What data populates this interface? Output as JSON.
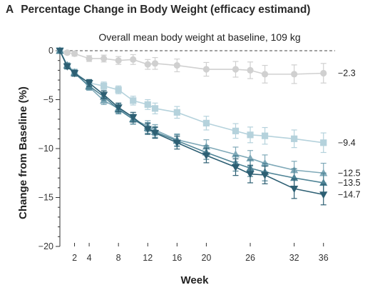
{
  "panel": {
    "letter": "A",
    "title": "Percentage Change in Body Weight (efficacy estimand)"
  },
  "chart_data": {
    "type": "line",
    "title": "Percentage Change in Body Weight (efficacy estimand)",
    "subtitle": "Overall mean body weight at baseline, 109 kg",
    "xlabel": "Week",
    "ylabel": "Change from Baseline (%)",
    "xlim": [
      0,
      37
    ],
    "ylim": [
      -20,
      0
    ],
    "xticks": [
      2,
      4,
      8,
      12,
      16,
      20,
      26,
      32,
      36
    ],
    "yticks": [
      0,
      -5,
      -10,
      -15,
      -20
    ],
    "reference_line": 0,
    "grid": false,
    "legend": "none",
    "series": [
      {
        "marker": "circle",
        "color": "#d0d0d0",
        "end_label": "-2.3",
        "points": [
          {
            "x": 0,
            "y": 0,
            "err": 0
          },
          {
            "x": 1,
            "y": -0.2,
            "err": 0.2
          },
          {
            "x": 2,
            "y": -0.3,
            "err": 0.25
          },
          {
            "x": 4,
            "y": -0.8,
            "err": 0.3
          },
          {
            "x": 6,
            "y": -0.8,
            "err": 0.35
          },
          {
            "x": 8,
            "y": -1.0,
            "err": 0.4
          },
          {
            "x": 10,
            "y": -0.9,
            "err": 0.5
          },
          {
            "x": 12,
            "y": -1.4,
            "err": 0.5
          },
          {
            "x": 13,
            "y": -1.3,
            "err": 0.6
          },
          {
            "x": 16,
            "y": -1.5,
            "err": 0.65
          },
          {
            "x": 20,
            "y": -1.9,
            "err": 0.7
          },
          {
            "x": 24,
            "y": -1.9,
            "err": 0.8
          },
          {
            "x": 26,
            "y": -2.0,
            "err": 0.85
          },
          {
            "x": 28,
            "y": -2.4,
            "err": 0.9
          },
          {
            "x": 32,
            "y": -2.4,
            "err": 0.95
          },
          {
            "x": 36,
            "y": -2.3,
            "err": 1.0
          }
        ]
      },
      {
        "marker": "square",
        "color": "#b5d2dc",
        "end_label": "-9.4",
        "points": [
          {
            "x": 0,
            "y": 0,
            "err": 0
          },
          {
            "x": 1,
            "y": -1.6,
            "err": 0.25
          },
          {
            "x": 2,
            "y": -2.2,
            "err": 0.3
          },
          {
            "x": 4,
            "y": -3.3,
            "err": 0.35
          },
          {
            "x": 6,
            "y": -3.6,
            "err": 0.4
          },
          {
            "x": 8,
            "y": -4.0,
            "err": 0.4
          },
          {
            "x": 10,
            "y": -5.1,
            "err": 0.45
          },
          {
            "x": 12,
            "y": -5.5,
            "err": 0.5
          },
          {
            "x": 13,
            "y": -5.9,
            "err": 0.55
          },
          {
            "x": 16,
            "y": -6.3,
            "err": 0.6
          },
          {
            "x": 20,
            "y": -7.4,
            "err": 0.7
          },
          {
            "x": 24,
            "y": -8.2,
            "err": 0.75
          },
          {
            "x": 26,
            "y": -8.6,
            "err": 0.8
          },
          {
            "x": 28,
            "y": -8.7,
            "err": 0.85
          },
          {
            "x": 32,
            "y": -9.0,
            "err": 0.9
          },
          {
            "x": 36,
            "y": -9.4,
            "err": 1.0
          }
        ]
      },
      {
        "marker": "triangle-up",
        "color": "#7fa9b8",
        "end_label": "-12.5",
        "points": [
          {
            "x": 0,
            "y": 0,
            "err": 0
          },
          {
            "x": 1,
            "y": -1.5,
            "err": 0.25
          },
          {
            "x": 2,
            "y": -2.2,
            "err": 0.3
          },
          {
            "x": 4,
            "y": -3.7,
            "err": 0.35
          },
          {
            "x": 6,
            "y": -5.1,
            "err": 0.4
          },
          {
            "x": 8,
            "y": -5.9,
            "err": 0.45
          },
          {
            "x": 10,
            "y": -7.0,
            "err": 0.5
          },
          {
            "x": 12,
            "y": -7.7,
            "err": 0.55
          },
          {
            "x": 13,
            "y": -8.1,
            "err": 0.55
          },
          {
            "x": 16,
            "y": -9.1,
            "err": 0.6
          },
          {
            "x": 20,
            "y": -9.8,
            "err": 0.7
          },
          {
            "x": 24,
            "y": -10.6,
            "err": 0.75
          },
          {
            "x": 26,
            "y": -11.0,
            "err": 0.8
          },
          {
            "x": 28,
            "y": -11.5,
            "err": 0.85
          },
          {
            "x": 32,
            "y": -12.2,
            "err": 0.9
          },
          {
            "x": 36,
            "y": -12.5,
            "err": 1.0
          }
        ]
      },
      {
        "marker": "triangle-up",
        "color": "#4f8496",
        "end_label": "-13.5",
        "points": [
          {
            "x": 0,
            "y": 0,
            "err": 0
          },
          {
            "x": 1,
            "y": -1.5,
            "err": 0.25
          },
          {
            "x": 2,
            "y": -2.3,
            "err": 0.3
          },
          {
            "x": 4,
            "y": -3.6,
            "err": 0.35
          },
          {
            "x": 6,
            "y": -4.7,
            "err": 0.4
          },
          {
            "x": 8,
            "y": -6.0,
            "err": 0.45
          },
          {
            "x": 10,
            "y": -7.0,
            "err": 0.5
          },
          {
            "x": 12,
            "y": -7.9,
            "err": 0.55
          },
          {
            "x": 13,
            "y": -8.3,
            "err": 0.55
          },
          {
            "x": 16,
            "y": -9.2,
            "err": 0.6
          },
          {
            "x": 20,
            "y": -10.4,
            "err": 0.7
          },
          {
            "x": 24,
            "y": -11.5,
            "err": 0.8
          },
          {
            "x": 26,
            "y": -12.0,
            "err": 0.85
          },
          {
            "x": 28,
            "y": -12.4,
            "err": 0.9
          },
          {
            "x": 32,
            "y": -13.0,
            "err": 0.95
          },
          {
            "x": 36,
            "y": -13.5,
            "err": 1.0
          }
        ]
      },
      {
        "marker": "triangle-down",
        "color": "#2d5f73",
        "end_label": "-14.7",
        "points": [
          {
            "x": 0,
            "y": 0,
            "err": 0
          },
          {
            "x": 1,
            "y": -1.6,
            "err": 0.25
          },
          {
            "x": 2,
            "y": -2.3,
            "err": 0.3
          },
          {
            "x": 4,
            "y": -3.3,
            "err": 0.35
          },
          {
            "x": 6,
            "y": -4.5,
            "err": 0.4
          },
          {
            "x": 8,
            "y": -5.8,
            "err": 0.45
          },
          {
            "x": 10,
            "y": -6.8,
            "err": 0.5
          },
          {
            "x": 12,
            "y": -8.0,
            "err": 0.55
          },
          {
            "x": 13,
            "y": -8.4,
            "err": 0.55
          },
          {
            "x": 16,
            "y": -9.4,
            "err": 0.65
          },
          {
            "x": 20,
            "y": -10.7,
            "err": 0.75
          },
          {
            "x": 24,
            "y": -11.9,
            "err": 0.85
          },
          {
            "x": 26,
            "y": -12.6,
            "err": 0.9
          },
          {
            "x": 28,
            "y": -12.7,
            "err": 0.9
          },
          {
            "x": 32,
            "y": -14.1,
            "err": 1.0
          },
          {
            "x": 36,
            "y": -14.7,
            "err": 1.05
          }
        ]
      }
    ]
  }
}
